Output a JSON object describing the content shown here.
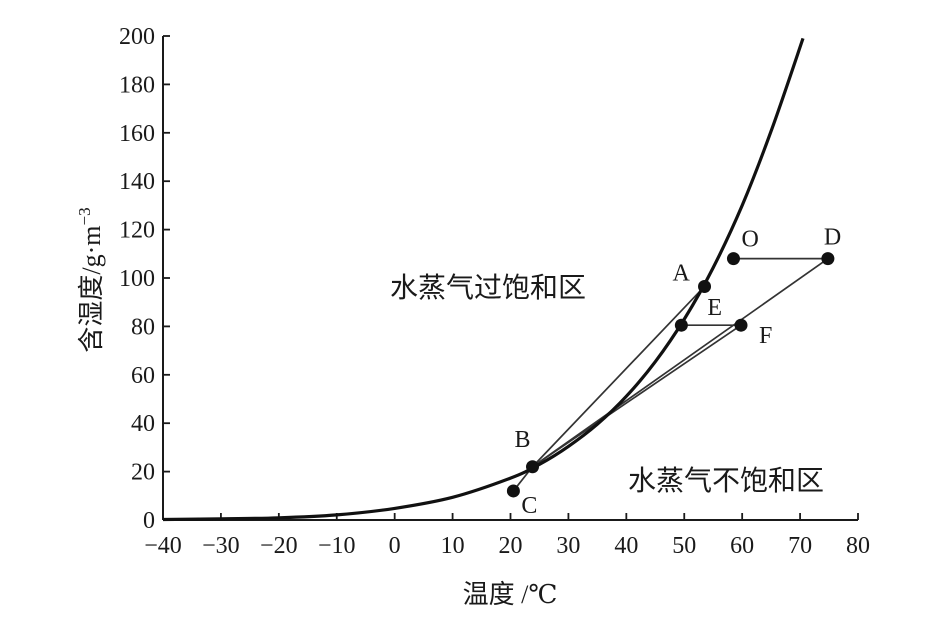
{
  "chart_data": {
    "type": "line",
    "xlabel": "温度 /℃",
    "ylabel": "含湿度/g·m⁻³",
    "ylabel_parts": {
      "main": "含湿度/g·m",
      "sup": "−3"
    },
    "xlim": [
      -40,
      80
    ],
    "ylim": [
      0,
      200
    ],
    "x_ticks": [
      -40,
      -30,
      -20,
      -10,
      0,
      10,
      20,
      30,
      40,
      50,
      60,
      70,
      80
    ],
    "y_ticks": [
      0,
      20,
      40,
      60,
      80,
      100,
      120,
      140,
      160,
      180,
      200
    ],
    "x_tick_labels": [
      "−40",
      "−30",
      "−20",
      "−10",
      "0",
      "10",
      "20",
      "30",
      "40",
      "50",
      "60",
      "70",
      "80"
    ],
    "y_tick_labels": [
      "0",
      "20",
      "40",
      "60",
      "80",
      "100",
      "120",
      "140",
      "160",
      "180",
      "200"
    ],
    "grid": false,
    "saturation_curve": {
      "x": [
        -40,
        -30,
        -20,
        -10,
        0,
        10,
        20,
        25,
        30,
        35,
        40,
        45,
        50,
        55,
        60,
        65,
        70.5
      ],
      "y": [
        0.2,
        0.5,
        0.9,
        2.1,
        4.8,
        9.4,
        17.3,
        23,
        30.4,
        39.6,
        51.1,
        65.4,
        83,
        104.3,
        130,
        160.7,
        199
      ]
    },
    "points": [
      {
        "name": "O",
        "x": 58.5,
        "y": 108
      },
      {
        "name": "D",
        "x": 74.8,
        "y": 108
      },
      {
        "name": "A",
        "x": 53.5,
        "y": 96.5
      },
      {
        "name": "E",
        "x": 49.5,
        "y": 80.5
      },
      {
        "name": "F",
        "x": 59.8,
        "y": 80.5
      },
      {
        "name": "B",
        "x": 23.8,
        "y": 22
      },
      {
        "name": "C",
        "x": 20.5,
        "y": 12
      }
    ],
    "segments": [
      [
        "O",
        "D"
      ],
      [
        "E",
        "F"
      ],
      [
        "C",
        "B"
      ],
      [
        "B",
        "A"
      ],
      [
        "B",
        "D"
      ],
      [
        "B",
        "F"
      ]
    ],
    "region_labels": {
      "supersaturated": "水蒸气过饱和区",
      "unsaturated": "水蒸气不饱和区"
    }
  }
}
